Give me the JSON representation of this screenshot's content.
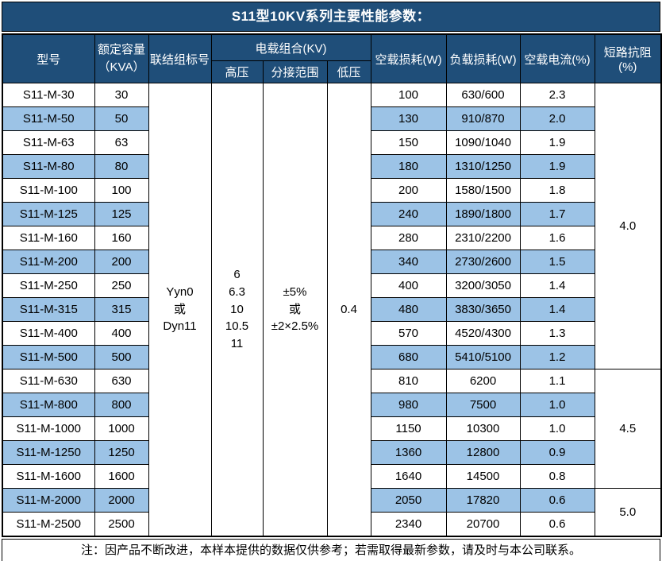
{
  "title": "S11型10KV系列主要性能参数：",
  "table": {
    "headers": {
      "model": "型号",
      "capacity": "额定容量\n（KVA）",
      "connection": "联结组标号",
      "voltage_group": "电载组合(KV)",
      "hv": "高压",
      "tap_range": "分接范围",
      "lv": "低压",
      "no_load_loss": "空载损耗(W)",
      "load_loss": "负载损耗(W)",
      "no_load_current": "空载电流(%)",
      "impedance": "短路抗阻(%)"
    },
    "merged": {
      "connection": "Yyn0\n或\nDyn11",
      "hv": "6\n6.3\n10\n10.5\n11",
      "tap_range": "±5%\n或\n±2×2.5%",
      "lv": "0.4"
    },
    "impedance_blocks": [
      {
        "value": "4.0",
        "rowspan": 12
      },
      {
        "value": "4.5",
        "rowspan": 5
      },
      {
        "value": "5.0",
        "rowspan": 2
      }
    ],
    "rows": [
      {
        "model": "S11-M-30",
        "capacity": "30",
        "no_load_loss": "100",
        "load_loss": "630/600",
        "no_load_current": "2.3"
      },
      {
        "model": "S11-M-50",
        "capacity": "50",
        "no_load_loss": "130",
        "load_loss": "910/870",
        "no_load_current": "2.0"
      },
      {
        "model": "S11-M-63",
        "capacity": "63",
        "no_load_loss": "150",
        "load_loss": "1090/1040",
        "no_load_current": "1.9"
      },
      {
        "model": "S11-M-80",
        "capacity": "80",
        "no_load_loss": "180",
        "load_loss": "1310/1250",
        "no_load_current": "1.9"
      },
      {
        "model": "S11-M-100",
        "capacity": "100",
        "no_load_loss": "200",
        "load_loss": "1580/1500",
        "no_load_current": "1.8"
      },
      {
        "model": "S11-M-125",
        "capacity": "125",
        "no_load_loss": "240",
        "load_loss": "1890/1800",
        "no_load_current": "1.7"
      },
      {
        "model": "S11-M-160",
        "capacity": "160",
        "no_load_loss": "280",
        "load_loss": "2310/2200",
        "no_load_current": "1.6"
      },
      {
        "model": "S11-M-200",
        "capacity": "200",
        "no_load_loss": "340",
        "load_loss": "2730/2600",
        "no_load_current": "1.5"
      },
      {
        "model": "S11-M-250",
        "capacity": "250",
        "no_load_loss": "400",
        "load_loss": "3200/3050",
        "no_load_current": "1.4"
      },
      {
        "model": "S11-M-315",
        "capacity": "315",
        "no_load_loss": "480",
        "load_loss": "3830/3650",
        "no_load_current": "1.4"
      },
      {
        "model": "S11-M-400",
        "capacity": "400",
        "no_load_loss": "570",
        "load_loss": "4520/4300",
        "no_load_current": "1.3"
      },
      {
        "model": "S11-M-500",
        "capacity": "500",
        "no_load_loss": "680",
        "load_loss": "5410/5100",
        "no_load_current": "1.2"
      },
      {
        "model": "S11-M-630",
        "capacity": "630",
        "no_load_loss": "810",
        "load_loss": "6200",
        "no_load_current": "1.1"
      },
      {
        "model": "S11-M-800",
        "capacity": "800",
        "no_load_loss": "980",
        "load_loss": "7500",
        "no_load_current": "1.0"
      },
      {
        "model": "S11-M-1000",
        "capacity": "1000",
        "no_load_loss": "1150",
        "load_loss": "10300",
        "no_load_current": "1.0"
      },
      {
        "model": "S11-M-1250",
        "capacity": "1250",
        "no_load_loss": "1360",
        "load_loss": "12800",
        "no_load_current": "0.9"
      },
      {
        "model": "S11-M-1600",
        "capacity": "1600",
        "no_load_loss": "1640",
        "load_loss": "14500",
        "no_load_current": "0.8"
      },
      {
        "model": "S11-M-2000",
        "capacity": "2000",
        "no_load_loss": "2050",
        "load_loss": "17820",
        "no_load_current": "0.6"
      },
      {
        "model": "S11-M-2500",
        "capacity": "2500",
        "no_load_loss": "2340",
        "load_loss": "20700",
        "no_load_current": "0.6"
      }
    ]
  },
  "footer_note": "注：因产品不断改进，本样本提供的数据仅供参考；若需取得最新参数，请及时与本公司联系。",
  "colors": {
    "header_bg": "#1F4E79",
    "row_alt_bg": "#9CC3E6",
    "border": "#000000",
    "header_text": "#FFFFFF"
  }
}
